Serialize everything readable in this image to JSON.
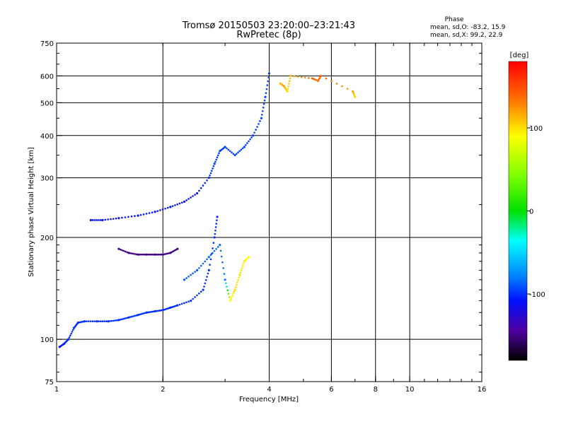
{
  "title_line1": "Tromsø 20150503 23:20:00–23:21:43",
  "title_line2": "RwPretec (8p)",
  "phase_header": "Phase",
  "phase_o": "mean, sd,O: -83.2, 15.9",
  "phase_x": "mean, sd,X:  99.2, 22.9",
  "colorbar_unit": "[deg]",
  "colors": {
    "grid": "#000000",
    "background": "#ffffff"
  },
  "chart_data": {
    "type": "scatter",
    "xlabel": "Frequency [MHz]",
    "ylabel": "Stationary phase Virtual Height [km]",
    "xscale": "log",
    "yscale": "log",
    "xlim": [
      1,
      16
    ],
    "ylim": [
      75,
      750
    ],
    "xticks": [
      1,
      2,
      4,
      6,
      8,
      10,
      16
    ],
    "xtick_labels": [
      "1",
      "2",
      "4",
      "6",
      "8",
      "10",
      "16"
    ],
    "xgrid": [
      2,
      4,
      6,
      8,
      10
    ],
    "yticks": [
      75,
      100,
      200,
      300,
      400,
      500,
      600,
      750
    ],
    "ytick_labels": [
      "75",
      "100",
      "200",
      "300",
      "400",
      "500",
      "600",
      "750"
    ],
    "ygrid": [
      100,
      200,
      300,
      400,
      500,
      600
    ],
    "grid": true,
    "colorbar": {
      "label": "[deg]",
      "range": [
        -180,
        180
      ],
      "ticks": [
        100,
        0,
        -100
      ],
      "tick_labels": [
        "100",
        "0",
        "-100"
      ]
    },
    "series": [
      {
        "points": [
          [
            1.02,
            95,
            -110
          ],
          [
            1.05,
            97,
            -105
          ],
          [
            1.08,
            100,
            -100
          ],
          [
            1.12,
            108,
            -100
          ],
          [
            1.15,
            112,
            -100
          ],
          [
            1.2,
            113,
            -100
          ],
          [
            1.3,
            113,
            -100
          ],
          [
            1.4,
            113,
            -100
          ],
          [
            1.5,
            114,
            -100
          ],
          [
            1.6,
            116,
            -100
          ],
          [
            1.7,
            118,
            -100
          ],
          [
            1.8,
            120,
            -100
          ],
          [
            1.9,
            121,
            -100
          ],
          [
            2.0,
            122,
            -100
          ],
          [
            2.1,
            124,
            -100
          ],
          [
            2.2,
            126,
            -100
          ],
          [
            2.4,
            130,
            -100
          ],
          [
            2.6,
            140,
            -100
          ],
          [
            2.7,
            160,
            -100
          ],
          [
            2.8,
            200,
            -100
          ],
          [
            2.85,
            230,
            -100
          ]
        ],
        "color_by": "phase"
      },
      {
        "points": [
          [
            1.25,
            225,
            -110
          ],
          [
            1.35,
            225,
            -110
          ],
          [
            1.5,
            228,
            -110
          ],
          [
            1.7,
            232,
            -110
          ],
          [
            1.9,
            238,
            -110
          ],
          [
            2.1,
            246,
            -110
          ],
          [
            2.3,
            255,
            -110
          ],
          [
            2.5,
            270,
            -110
          ],
          [
            2.7,
            300,
            -100
          ],
          [
            2.8,
            330,
            -95
          ],
          [
            2.9,
            360,
            -95
          ],
          [
            3.0,
            370,
            -95
          ],
          [
            3.2,
            350,
            -95
          ],
          [
            3.4,
            370,
            -95
          ],
          [
            3.6,
            400,
            -95
          ],
          [
            3.8,
            450,
            -95
          ],
          [
            3.9,
            520,
            -95
          ],
          [
            4.0,
            610,
            -95
          ]
        ],
        "color_by": "phase"
      },
      {
        "points": [
          [
            1.5,
            185,
            -150
          ],
          [
            1.6,
            180,
            -150
          ],
          [
            1.7,
            178,
            -150
          ],
          [
            1.8,
            178,
            -150
          ],
          [
            1.9,
            178,
            -150
          ],
          [
            2.0,
            178,
            -150
          ],
          [
            2.1,
            180,
            -150
          ],
          [
            2.2,
            185,
            -150
          ]
        ],
        "color_by": "phase"
      },
      {
        "points": [
          [
            2.3,
            150,
            -90
          ],
          [
            2.5,
            160,
            -90
          ],
          [
            2.7,
            175,
            -85
          ],
          [
            2.9,
            190,
            -85
          ],
          [
            3.0,
            150,
            -80
          ],
          [
            3.1,
            130,
            90
          ],
          [
            3.2,
            140,
            100
          ],
          [
            3.3,
            155,
            100
          ],
          [
            3.4,
            170,
            95
          ],
          [
            3.5,
            175,
            90
          ]
        ],
        "color_by": "phase"
      },
      {
        "points": [
          [
            4.3,
            570,
            110
          ],
          [
            4.4,
            560,
            120
          ],
          [
            4.5,
            540,
            100
          ],
          [
            4.6,
            600,
            110
          ],
          [
            5.3,
            590,
            140
          ],
          [
            5.5,
            580,
            130
          ],
          [
            5.6,
            600,
            140
          ],
          [
            6.9,
            540,
            120
          ],
          [
            7.0,
            520,
            100
          ]
        ],
        "color_by": "phase"
      }
    ]
  }
}
